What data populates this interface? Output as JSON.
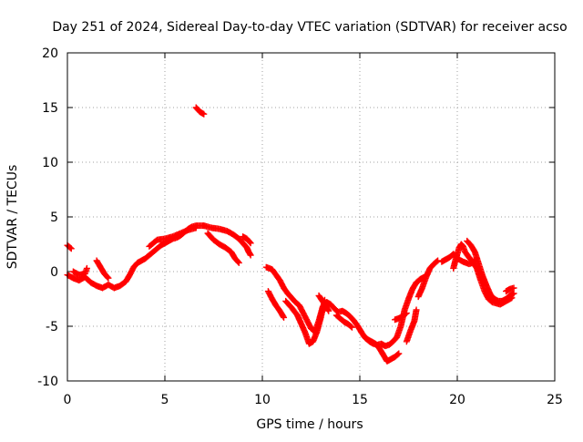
{
  "chart_data": {
    "type": "scatter",
    "title": "Day 251 of 2024, Sidereal Day-to-day VTEC variation (SDTVAR) for receiver acso",
    "xlabel": "GPS time / hours",
    "ylabel": "SDTVAR / TECUs",
    "xlim": [
      0,
      25
    ],
    "ylim": [
      -10,
      20
    ],
    "xticks": [
      0,
      5,
      10,
      15,
      20,
      25
    ],
    "yticks": [
      -10,
      -5,
      0,
      5,
      10,
      15,
      20
    ],
    "grid": true,
    "marker": "+",
    "series": [
      {
        "name": "SDTVAR",
        "color": "#ff0000",
        "segments": [
          [
            [
              0.0,
              2.4
            ],
            [
              0.2,
              2.1
            ]
          ],
          [
            [
              0.0,
              -0.3
            ],
            [
              0.3,
              -0.6
            ],
            [
              0.6,
              -0.8
            ],
            [
              0.9,
              -0.5
            ],
            [
              1.2,
              -1.0
            ],
            [
              1.5,
              -1.3
            ],
            [
              1.8,
              -1.5
            ],
            [
              2.1,
              -1.2
            ],
            [
              2.4,
              -1.5
            ],
            [
              2.7,
              -1.3
            ],
            [
              3.0,
              -0.9
            ],
            [
              3.2,
              -0.3
            ],
            [
              3.4,
              0.4
            ],
            [
              3.6,
              0.8
            ],
            [
              3.8,
              1.0
            ],
            [
              4.0,
              1.2
            ],
            [
              4.2,
              1.5
            ],
            [
              4.4,
              1.8
            ],
            [
              4.6,
              2.1
            ],
            [
              4.8,
              2.4
            ],
            [
              5.0,
              2.6
            ],
            [
              5.2,
              2.8
            ],
            [
              5.4,
              3.0
            ],
            [
              5.6,
              3.1
            ],
            [
              5.8,
              3.3
            ],
            [
              6.0,
              3.6
            ],
            [
              6.2,
              3.9
            ],
            [
              6.4,
              4.1
            ],
            [
              6.6,
              4.2
            ],
            [
              6.8,
              4.2
            ],
            [
              7.0,
              4.2
            ]
          ],
          [
            [
              0.3,
              0.0
            ],
            [
              0.6,
              -0.3
            ],
            [
              0.9,
              -0.2
            ],
            [
              1.0,
              0.3
            ]
          ],
          [
            [
              1.5,
              1.0
            ],
            [
              1.7,
              0.4
            ],
            [
              1.9,
              -0.2
            ],
            [
              2.1,
              -0.6
            ]
          ],
          [
            [
              4.2,
              2.3
            ],
            [
              4.6,
              2.9
            ],
            [
              5.0,
              3.0
            ],
            [
              5.4,
              3.2
            ],
            [
              5.8,
              3.5
            ],
            [
              6.2,
              3.8
            ],
            [
              6.6,
              4.0
            ]
          ],
          [
            [
              6.6,
              15.0
            ],
            [
              6.8,
              14.6
            ],
            [
              7.0,
              14.4
            ]
          ],
          [
            [
              7.0,
              4.2
            ],
            [
              7.4,
              4.0
            ],
            [
              7.8,
              3.9
            ],
            [
              8.2,
              3.7
            ],
            [
              8.5,
              3.4
            ],
            [
              8.8,
              3.0
            ],
            [
              9.0,
              2.6
            ],
            [
              9.2,
              2.2
            ],
            [
              9.3,
              1.8
            ],
            [
              9.4,
              1.5
            ]
          ],
          [
            [
              7.2,
              3.5
            ],
            [
              7.5,
              2.9
            ],
            [
              7.8,
              2.5
            ],
            [
              8.1,
              2.2
            ],
            [
              8.4,
              1.8
            ],
            [
              8.6,
              1.2
            ],
            [
              8.8,
              0.8
            ]
          ],
          [
            [
              9.0,
              3.2
            ],
            [
              9.2,
              3.0
            ],
            [
              9.4,
              2.6
            ]
          ],
          [
            [
              10.2,
              0.4
            ],
            [
              10.5,
              0.2
            ],
            [
              10.7,
              -0.3
            ],
            [
              10.9,
              -0.8
            ],
            [
              11.1,
              -1.5
            ],
            [
              11.3,
              -2.0
            ],
            [
              11.5,
              -2.4
            ],
            [
              11.7,
              -2.8
            ],
            [
              11.9,
              -3.1
            ],
            [
              12.1,
              -3.8
            ],
            [
              12.3,
              -4.5
            ],
            [
              12.5,
              -5.2
            ],
            [
              12.7,
              -5.5
            ],
            [
              12.9,
              -4.5
            ],
            [
              13.1,
              -3.2
            ],
            [
              13.3,
              -2.8
            ],
            [
              13.5,
              -3.0
            ],
            [
              13.7,
              -3.4
            ],
            [
              13.9,
              -3.7
            ],
            [
              14.1,
              -3.6
            ],
            [
              14.3,
              -3.8
            ],
            [
              14.5,
              -4.1
            ],
            [
              14.7,
              -4.5
            ],
            [
              14.9,
              -5.0
            ],
            [
              15.1,
              -5.6
            ],
            [
              15.3,
              -6.1
            ],
            [
              15.5,
              -6.4
            ],
            [
              15.7,
              -6.6
            ],
            [
              15.9,
              -6.7
            ],
            [
              16.1,
              -6.6
            ],
            [
              16.3,
              -6.8
            ],
            [
              16.5,
              -6.7
            ],
            [
              16.7,
              -6.4
            ],
            [
              16.9,
              -6.0
            ],
            [
              17.1,
              -5.0
            ],
            [
              17.3,
              -3.5
            ],
            [
              17.5,
              -2.5
            ],
            [
              17.7,
              -1.6
            ],
            [
              17.9,
              -1.0
            ],
            [
              18.1,
              -0.7
            ],
            [
              18.3,
              -0.5
            ]
          ],
          [
            [
              10.3,
              -1.8
            ],
            [
              10.5,
              -2.5
            ],
            [
              10.7,
              -3.1
            ],
            [
              10.9,
              -3.6
            ],
            [
              11.1,
              -4.2
            ]
          ],
          [
            [
              11.2,
              -2.7
            ],
            [
              11.5,
              -3.3
            ],
            [
              11.8,
              -4.0
            ],
            [
              12.0,
              -4.8
            ],
            [
              12.2,
              -5.6
            ],
            [
              12.4,
              -6.6
            ],
            [
              12.6,
              -6.4
            ],
            [
              12.8,
              -5.5
            ],
            [
              13.0,
              -4.2
            ],
            [
              13.2,
              -2.6
            ]
          ],
          [
            [
              12.9,
              -2.2
            ],
            [
              13.2,
              -3.0
            ],
            [
              13.4,
              -3.6
            ]
          ],
          [
            [
              13.8,
              -4.0
            ],
            [
              14.0,
              -4.3
            ],
            [
              14.2,
              -4.6
            ],
            [
              14.4,
              -4.8
            ],
            [
              14.6,
              -5.1
            ]
          ],
          [
            [
              15.2,
              -5.9
            ],
            [
              15.4,
              -6.2
            ],
            [
              15.6,
              -6.4
            ],
            [
              15.8,
              -6.6
            ],
            [
              16.0,
              -7.0
            ],
            [
              16.2,
              -7.6
            ],
            [
              16.4,
              -8.2
            ],
            [
              16.6,
              -8.0
            ],
            [
              16.8,
              -7.8
            ],
            [
              17.0,
              -7.5
            ]
          ],
          [
            [
              17.4,
              -6.4
            ],
            [
              17.6,
              -5.4
            ],
            [
              17.8,
              -4.5
            ],
            [
              17.9,
              -3.5
            ]
          ],
          [
            [
              16.8,
              -4.4
            ],
            [
              17.1,
              -4.2
            ],
            [
              17.4,
              -3.8
            ]
          ],
          [
            [
              18.0,
              -2.3
            ],
            [
              18.2,
              -1.5
            ],
            [
              18.4,
              -0.5
            ],
            [
              18.6,
              0.3
            ],
            [
              18.8,
              0.7
            ],
            [
              19.0,
              1.0
            ]
          ],
          [
            [
              19.8,
              0.3
            ],
            [
              19.9,
              1.0
            ],
            [
              20.0,
              1.6
            ],
            [
              20.1,
              2.2
            ],
            [
              20.2,
              2.5
            ],
            [
              20.3,
              2.3
            ],
            [
              20.4,
              1.8
            ],
            [
              20.6,
              1.3
            ],
            [
              20.8,
              0.9
            ],
            [
              21.0,
              0.3
            ],
            [
              21.2,
              -0.8
            ],
            [
              21.4,
              -1.8
            ],
            [
              21.6,
              -2.5
            ],
            [
              21.8,
              -2.8
            ],
            [
              22.0,
              -2.9
            ],
            [
              22.2,
              -3.0
            ],
            [
              22.4,
              -2.8
            ],
            [
              22.6,
              -2.6
            ],
            [
              22.8,
              -2.4
            ]
          ],
          [
            [
              19.2,
              0.9
            ],
            [
              19.4,
              1.1
            ],
            [
              19.6,
              1.3
            ],
            [
              19.8,
              1.6
            ],
            [
              20.0,
              1.2
            ],
            [
              20.3,
              0.9
            ],
            [
              20.6,
              0.7
            ],
            [
              20.8,
              0.8
            ],
            [
              21.0,
              1.2
            ]
          ],
          [
            [
              20.5,
              2.8
            ],
            [
              20.7,
              2.4
            ],
            [
              20.9,
              1.8
            ],
            [
              21.1,
              0.7
            ],
            [
              21.3,
              -0.4
            ],
            [
              21.5,
              -1.3
            ],
            [
              21.7,
              -2.1
            ],
            [
              21.9,
              -2.5
            ],
            [
              22.1,
              -2.7
            ],
            [
              22.3,
              -2.7
            ],
            [
              22.5,
              -2.5
            ],
            [
              22.7,
              -2.2
            ],
            [
              22.9,
              -2.0
            ]
          ],
          [
            [
              22.5,
              -1.8
            ],
            [
              22.7,
              -1.6
            ],
            [
              22.9,
              -1.5
            ]
          ]
        ]
      }
    ]
  }
}
